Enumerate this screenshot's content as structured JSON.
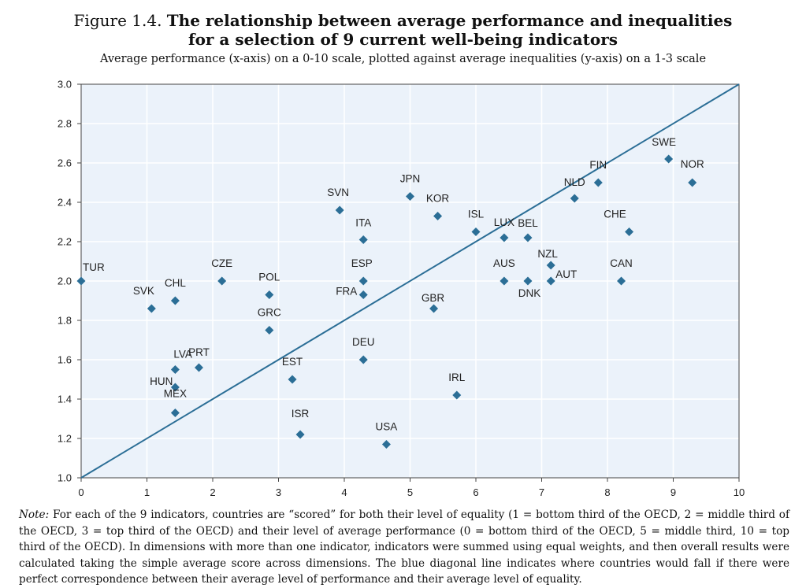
{
  "header": {
    "figure_label": "Figure 1.4.",
    "title_line1": "The relationship between average performance and inequalities",
    "title_line2": "for a selection of 9 current well-being indicators",
    "subtitle": "Average performance (x-axis) on a 0-10 scale, plotted against average inequalities (y-axis) on a 1-3 scale"
  },
  "chart_data": {
    "type": "scatter",
    "title": "The relationship between average performance and inequalities for a selection of 9 current well-being indicators",
    "xlabel": "",
    "ylabel": "",
    "xlim": [
      0,
      10
    ],
    "ylim": [
      1.0,
      3.0
    ],
    "x_ticks": [
      "0",
      "1",
      "2",
      "3",
      "4",
      "5",
      "6",
      "7",
      "8",
      "9",
      "10"
    ],
    "y_ticks": [
      "1.0",
      "1.2",
      "1.4",
      "1.6",
      "1.8",
      "2.0",
      "2.2",
      "2.4",
      "2.6",
      "2.8",
      "3.0"
    ],
    "reference_line": {
      "from": [
        0,
        1.0
      ],
      "to": [
        10,
        3.0
      ]
    },
    "colors": {
      "points": "#2b6e96",
      "line": "#2b6e96",
      "plot_bg": "#ebf2fa",
      "grid": "#ffffff"
    },
    "grid": true,
    "points": [
      {
        "label": "TUR",
        "x": 0.0,
        "y": 2.0
      },
      {
        "label": "SVK",
        "x": 1.07,
        "y": 1.86
      },
      {
        "label": "CHL",
        "x": 1.43,
        "y": 1.9
      },
      {
        "label": "LVA",
        "x": 1.43,
        "y": 1.55
      },
      {
        "label": "HUN",
        "x": 1.43,
        "y": 1.46
      },
      {
        "label": "MEX",
        "x": 1.43,
        "y": 1.33
      },
      {
        "label": "PRT",
        "x": 1.79,
        "y": 1.56
      },
      {
        "label": "CZE",
        "x": 2.14,
        "y": 2.0
      },
      {
        "label": "POL",
        "x": 2.86,
        "y": 1.93
      },
      {
        "label": "GRC",
        "x": 2.86,
        "y": 1.75
      },
      {
        "label": "EST",
        "x": 3.21,
        "y": 1.5
      },
      {
        "label": "ISR",
        "x": 3.33,
        "y": 1.22
      },
      {
        "label": "SVN",
        "x": 3.93,
        "y": 2.36
      },
      {
        "label": "ITA",
        "x": 4.29,
        "y": 2.21
      },
      {
        "label": "ESP",
        "x": 4.29,
        "y": 2.0
      },
      {
        "label": "FRA",
        "x": 4.29,
        "y": 1.93
      },
      {
        "label": "DEU",
        "x": 4.29,
        "y": 1.6
      },
      {
        "label": "USA",
        "x": 4.64,
        "y": 1.17
      },
      {
        "label": "JPN",
        "x": 5.0,
        "y": 2.43
      },
      {
        "label": "KOR",
        "x": 5.42,
        "y": 2.33
      },
      {
        "label": "GBR",
        "x": 5.36,
        "y": 1.86
      },
      {
        "label": "IRL",
        "x": 5.71,
        "y": 1.42
      },
      {
        "label": "ISL",
        "x": 6.0,
        "y": 2.25
      },
      {
        "label": "LUX",
        "x": 6.43,
        "y": 2.22
      },
      {
        "label": "BEL",
        "x": 6.79,
        "y": 2.22
      },
      {
        "label": "AUS",
        "x": 6.43,
        "y": 2.0
      },
      {
        "label": "DNK",
        "x": 6.79,
        "y": 2.0
      },
      {
        "label": "NZL",
        "x": 7.14,
        "y": 2.08
      },
      {
        "label": "AUT",
        "x": 7.14,
        "y": 2.0
      },
      {
        "label": "NLD",
        "x": 7.5,
        "y": 2.42
      },
      {
        "label": "FIN",
        "x": 7.86,
        "y": 2.5
      },
      {
        "label": "CHE",
        "x": 8.33,
        "y": 2.25
      },
      {
        "label": "CAN",
        "x": 8.21,
        "y": 2.0
      },
      {
        "label": "SWE",
        "x": 8.93,
        "y": 2.62
      },
      {
        "label": "NOR",
        "x": 9.29,
        "y": 2.5
      }
    ]
  },
  "note": {
    "label": "Note:",
    "text": "For each of the 9 indicators, countries are “scored” for both their level of equality (1 = bottom third of the OECD, 2 = middle third of the OECD, 3 = top third of the OECD) and their level of average performance (0 = bottom third of the OECD, 5 = middle third, 10 = top third of the OECD). In dimensions with more than one indicator, indicators were summed using equal weights, and then overall results were calculated taking the simple average score across dimensions. The blue diagonal line indicates where countries would fall if there were perfect correspondence between their average level of performance and their average level of equality."
  }
}
